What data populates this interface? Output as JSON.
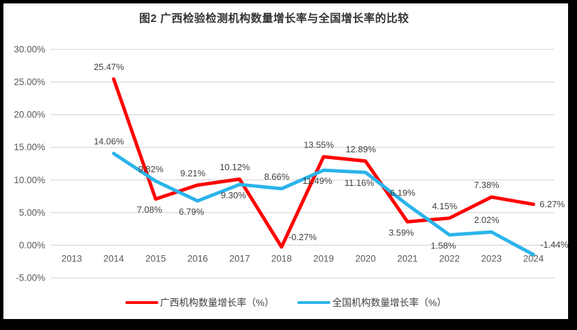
{
  "title": "图2 广西检验检测机构数量增长率与全国增长率的比较",
  "colors": {
    "guangxi_red": "#FF0000",
    "national_blue": "#2BB4EA",
    "gridline": "#D9D9D9",
    "axis_text": "#595959",
    "label_text": "#404040",
    "frame": "#000000",
    "background": "#FFFFFF"
  },
  "legend": {
    "items": [
      {
        "label": "广西机构数量增长率（%）",
        "color": "#FF0000"
      },
      {
        "label": "全国机构数量增长率（%）",
        "color": "#2BB4EA"
      }
    ]
  },
  "chart_data": {
    "type": "line",
    "title": "图2 广西检验检测机构数量增长率与全国增长率的比较",
    "categories": [
      "2013",
      "2014",
      "2015",
      "2016",
      "2017",
      "2018",
      "2019",
      "2020",
      "2021",
      "2022",
      "2023",
      "2024"
    ],
    "xlabel": "",
    "ylabel": "",
    "ylim": [
      -5,
      30
    ],
    "grid": true,
    "legend_position": "bottom",
    "y_ticks": [
      {
        "value": 30,
        "label": "30.00%"
      },
      {
        "value": 25,
        "label": "25.00%"
      },
      {
        "value": 20,
        "label": "20.00%"
      },
      {
        "value": 15,
        "label": "15.00%"
      },
      {
        "value": 10,
        "label": "10.00%"
      },
      {
        "value": 5,
        "label": "5.00%"
      },
      {
        "value": 0,
        "label": "0.00%"
      },
      {
        "value": -5,
        "label": "-5.00%"
      }
    ],
    "series": [
      {
        "name": "广西机构数量增长率（%）",
        "color": "#FF0000",
        "values": [
          null,
          25.47,
          7.08,
          9.21,
          10.12,
          -0.27,
          13.55,
          12.89,
          3.59,
          4.15,
          7.38,
          6.27
        ],
        "labels": [
          "",
          "25.47%",
          "7.08%",
          "9.21%",
          "10.12%",
          "-0.27%",
          "13.55%",
          "12.89%",
          "3.59%",
          "4.15%",
          "7.38%",
          "6.27%"
        ],
        "label_pos": [
          "",
          "above",
          "below",
          "above",
          "above",
          "above-right",
          "above",
          "above",
          "below",
          "above",
          "above",
          "right"
        ]
      },
      {
        "name": "全国机构数量增长率（%）",
        "color": "#2BB4EA",
        "values": [
          null,
          14.06,
          9.82,
          6.79,
          9.3,
          8.66,
          11.49,
          11.16,
          6.19,
          1.58,
          2.02,
          -1.44
        ],
        "labels": [
          "",
          "14.06%",
          "9.82%",
          "6.79%",
          "9.30%",
          "8.66%",
          "11.49%",
          "11.16%",
          "6.19%",
          "1.58%",
          "2.02%",
          "-1.44%"
        ],
        "label_pos": [
          "",
          "above",
          "above",
          "below",
          "below",
          "above",
          "below",
          "below",
          "above",
          "below",
          "above",
          "above-right"
        ]
      }
    ]
  }
}
